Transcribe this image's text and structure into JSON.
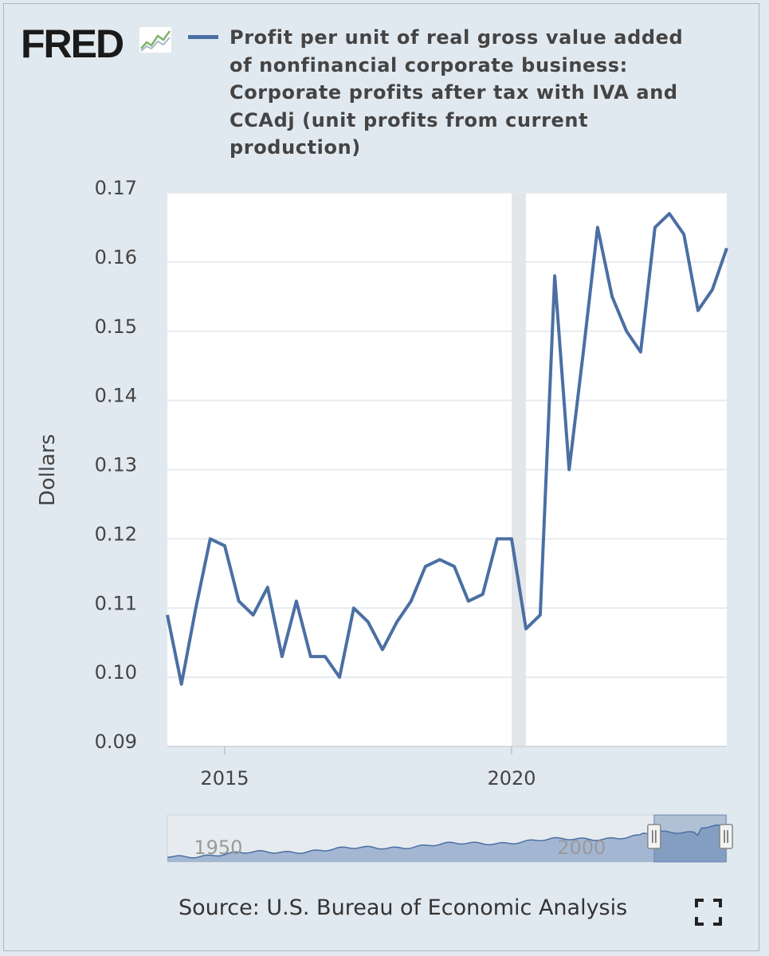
{
  "header": {
    "logo_text": "FRED",
    "logo_icon": "fred-chart-icon"
  },
  "legend": {
    "swatch_color": "#4b6fa3",
    "series_label": "Profit per unit of real gross value added of nonfinancial corporate business: Corporate profits after tax with IVA and CCAdj (unit profits from current production)"
  },
  "chart_data": {
    "type": "line",
    "ylabel": "Dollars",
    "ylim": [
      0.09,
      0.17
    ],
    "yticks": [
      "0.17",
      "0.16",
      "0.15",
      "0.14",
      "0.13",
      "0.12",
      "0.11",
      "0.10",
      "0.09"
    ],
    "xticks": [
      "2015",
      "2020"
    ],
    "grid": true,
    "recession_band": {
      "start": "2020-01-01",
      "end": "2020-04-01"
    },
    "series": [
      {
        "color": "#4b6fa3",
        "x": [
          "2014-01-01",
          "2014-04-01",
          "2014-07-01",
          "2014-10-01",
          "2015-01-01",
          "2015-04-01",
          "2015-07-01",
          "2015-10-01",
          "2016-01-01",
          "2016-04-01",
          "2016-07-01",
          "2016-10-01",
          "2017-01-01",
          "2017-04-01",
          "2017-07-01",
          "2017-10-01",
          "2018-01-01",
          "2018-04-01",
          "2018-07-01",
          "2018-10-01",
          "2019-01-01",
          "2019-04-01",
          "2019-07-01",
          "2019-10-01",
          "2020-01-01",
          "2020-04-01",
          "2020-07-01",
          "2020-10-01",
          "2021-01-01",
          "2021-04-01",
          "2021-07-01",
          "2021-10-01",
          "2022-01-01",
          "2022-04-01",
          "2022-07-01",
          "2022-10-01",
          "2023-01-01",
          "2023-04-01",
          "2023-07-01",
          "2023-10-01"
        ],
        "y": [
          0.109,
          0.099,
          0.11,
          0.12,
          0.119,
          0.111,
          0.109,
          0.113,
          0.103,
          0.111,
          0.103,
          0.103,
          0.1,
          0.11,
          0.108,
          0.104,
          0.108,
          0.111,
          0.116,
          0.117,
          0.116,
          0.111,
          0.112,
          0.12,
          0.12,
          0.107,
          0.109,
          0.158,
          0.13,
          0.147,
          0.165,
          0.155,
          0.15,
          0.147,
          0.165,
          0.167,
          0.164,
          0.153,
          0.156,
          0.162
        ]
      }
    ],
    "navigator": {
      "labels": [
        "1950",
        "2000"
      ]
    }
  },
  "footer": {
    "source": "Source: U.S. Bureau of Economic Analysis",
    "fullscreen_icon": "fullscreen-icon"
  }
}
